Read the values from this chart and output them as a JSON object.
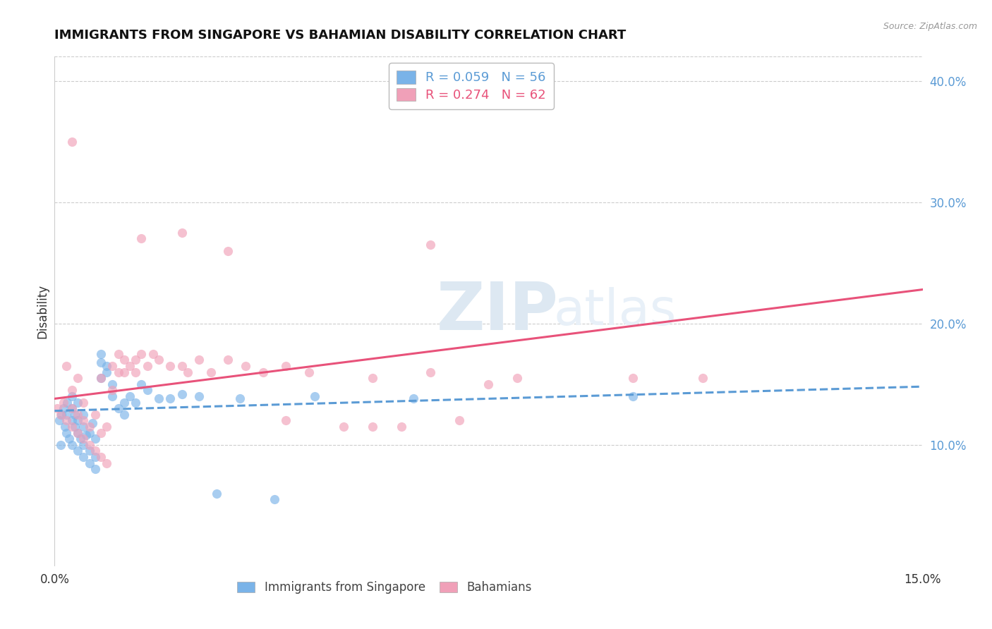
{
  "title": "IMMIGRANTS FROM SINGAPORE VS BAHAMIAN DISABILITY CORRELATION CHART",
  "source": "Source: ZipAtlas.com",
  "ylabel": "Disability",
  "xlim": [
    0.0,
    0.15
  ],
  "ylim": [
    0.0,
    0.42
  ],
  "x_ticks": [
    0.0,
    0.05,
    0.1,
    0.15
  ],
  "x_tick_labels": [
    "0.0%",
    "",
    "",
    "15.0%"
  ],
  "y_ticks_right": [
    0.1,
    0.2,
    0.3,
    0.4
  ],
  "y_tick_labels_right": [
    "10.0%",
    "20.0%",
    "30.0%",
    "40.0%"
  ],
  "legend_entries": [
    {
      "label": "R = 0.059   N = 56",
      "color": "#5b9bd5"
    },
    {
      "label": "R = 0.274   N = 62",
      "color": "#e8527a"
    }
  ],
  "bottom_legend": [
    {
      "label": "Immigrants from Singapore",
      "color": "#7ab3e8"
    },
    {
      "label": "Bahamians",
      "color": "#f0a0b8"
    }
  ],
  "blue_scatter_x": [
    0.0008,
    0.001,
    0.0012,
    0.0015,
    0.0018,
    0.002,
    0.002,
    0.0022,
    0.0025,
    0.003,
    0.003,
    0.003,
    0.003,
    0.0035,
    0.0035,
    0.004,
    0.004,
    0.004,
    0.004,
    0.0045,
    0.005,
    0.005,
    0.005,
    0.005,
    0.0055,
    0.006,
    0.006,
    0.006,
    0.0065,
    0.007,
    0.007,
    0.007,
    0.008,
    0.008,
    0.008,
    0.009,
    0.009,
    0.01,
    0.01,
    0.011,
    0.012,
    0.012,
    0.013,
    0.014,
    0.015,
    0.016,
    0.018,
    0.02,
    0.022,
    0.025,
    0.028,
    0.032,
    0.038,
    0.045,
    0.062,
    0.1
  ],
  "blue_scatter_y": [
    0.12,
    0.1,
    0.125,
    0.13,
    0.115,
    0.11,
    0.125,
    0.135,
    0.105,
    0.12,
    0.13,
    0.14,
    0.1,
    0.115,
    0.125,
    0.095,
    0.11,
    0.12,
    0.135,
    0.105,
    0.09,
    0.1,
    0.115,
    0.125,
    0.108,
    0.085,
    0.095,
    0.11,
    0.118,
    0.08,
    0.09,
    0.105,
    0.168,
    0.175,
    0.155,
    0.16,
    0.165,
    0.14,
    0.15,
    0.13,
    0.135,
    0.125,
    0.14,
    0.135,
    0.15,
    0.145,
    0.138,
    0.138,
    0.142,
    0.14,
    0.06,
    0.138,
    0.055,
    0.14,
    0.138,
    0.14
  ],
  "pink_scatter_x": [
    0.0005,
    0.001,
    0.0015,
    0.002,
    0.002,
    0.003,
    0.003,
    0.003,
    0.004,
    0.004,
    0.004,
    0.005,
    0.005,
    0.005,
    0.006,
    0.006,
    0.007,
    0.007,
    0.008,
    0.008,
    0.008,
    0.009,
    0.009,
    0.01,
    0.01,
    0.011,
    0.011,
    0.012,
    0.012,
    0.013,
    0.014,
    0.014,
    0.015,
    0.016,
    0.017,
    0.018,
    0.02,
    0.022,
    0.023,
    0.025,
    0.027,
    0.03,
    0.033,
    0.036,
    0.04,
    0.044,
    0.05,
    0.06,
    0.065,
    0.07,
    0.015,
    0.03,
    0.04,
    0.055,
    0.003,
    0.055,
    0.065,
    0.08,
    0.1,
    0.112,
    0.022,
    0.075
  ],
  "pink_scatter_y": [
    0.13,
    0.125,
    0.135,
    0.12,
    0.165,
    0.115,
    0.13,
    0.145,
    0.11,
    0.125,
    0.155,
    0.105,
    0.12,
    0.135,
    0.1,
    0.115,
    0.095,
    0.125,
    0.09,
    0.11,
    0.155,
    0.085,
    0.115,
    0.145,
    0.165,
    0.16,
    0.175,
    0.16,
    0.17,
    0.165,
    0.17,
    0.16,
    0.175,
    0.165,
    0.175,
    0.17,
    0.165,
    0.165,
    0.16,
    0.17,
    0.16,
    0.17,
    0.165,
    0.16,
    0.165,
    0.16,
    0.115,
    0.115,
    0.265,
    0.12,
    0.27,
    0.26,
    0.12,
    0.115,
    0.35,
    0.155,
    0.16,
    0.155,
    0.155,
    0.155,
    0.275,
    0.15
  ],
  "blue_line_x": [
    0.0,
    0.15
  ],
  "blue_line_y": [
    0.128,
    0.148
  ],
  "blue_line_style": "--",
  "blue_line_color": "#5b9bd5",
  "pink_line_x": [
    0.0,
    0.15
  ],
  "pink_line_y": [
    0.138,
    0.228
  ],
  "pink_line_color": "#e8527a",
  "dot_color_blue": "#7ab3e8",
  "dot_color_pink": "#f0a0b8",
  "dot_alpha": 0.65,
  "dot_size": 90,
  "grid_color": "#cccccc",
  "grid_style": "--",
  "background_color": "#ffffff"
}
